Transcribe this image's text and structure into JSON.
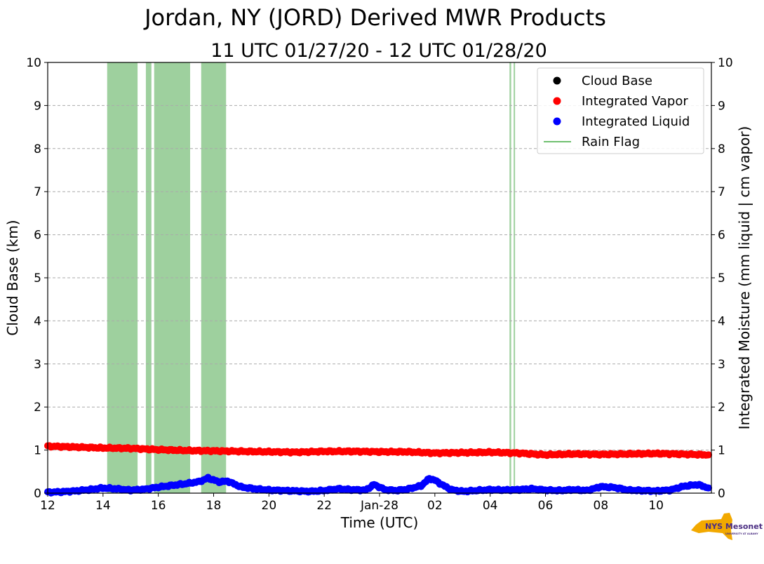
{
  "chart_data": {
    "type": "scatter",
    "title": "Jordan, NY (JORD) Derived MWR Products",
    "subtitle": "11 UTC 01/27/20 - 12 UTC 01/28/20",
    "xlabel": "Time (UTC)",
    "ylabel_left": "Cloud Base (km)",
    "ylabel_right": "Integrated Moisture (mm liquid | cm vapor)",
    "xlim_hours": [
      0,
      24
    ],
    "ylim": [
      0,
      10
    ],
    "grid": "horizontal dashed",
    "x_ticks": [
      {
        "hour": 0,
        "label": "12"
      },
      {
        "hour": 2,
        "label": "14"
      },
      {
        "hour": 4,
        "label": "16"
      },
      {
        "hour": 6,
        "label": "18"
      },
      {
        "hour": 8,
        "label": "20"
      },
      {
        "hour": 10,
        "label": "22"
      },
      {
        "hour": 12,
        "label": "Jan-28"
      },
      {
        "hour": 14,
        "label": "02"
      },
      {
        "hour": 16,
        "label": "04"
      },
      {
        "hour": 18,
        "label": "06"
      },
      {
        "hour": 20,
        "label": "08"
      },
      {
        "hour": 22,
        "label": "10"
      }
    ],
    "y_ticks": [
      "0",
      "1",
      "2",
      "3",
      "4",
      "5",
      "6",
      "7",
      "8",
      "9",
      "10"
    ],
    "legend": {
      "placement": "top-right",
      "entries": [
        {
          "label": "Cloud Base",
          "color": "#000000",
          "kind": "dot"
        },
        {
          "label": "Integrated Vapor",
          "color": "#ff0000",
          "kind": "dot"
        },
        {
          "label": "Integrated Liquid",
          "color": "#0000ff",
          "kind": "dot"
        },
        {
          "label": "Rain Flag",
          "color": "#6fbf6f",
          "kind": "line"
        }
      ]
    },
    "rain_flag": {
      "color": "#8dc88d",
      "periods_hours": [
        [
          2.15,
          3.25
        ],
        [
          3.55,
          3.75
        ],
        [
          3.85,
          5.15
        ],
        [
          5.55,
          6.45
        ],
        [
          16.7,
          16.76
        ],
        [
          16.85,
          16.9
        ]
      ]
    },
    "series": [
      {
        "name": "Integrated Vapor",
        "color": "#ff0000",
        "x_hours": [
          0,
          1,
          2,
          3,
          4,
          5,
          6,
          7,
          8,
          9,
          10,
          11,
          12,
          13,
          14,
          15,
          16,
          17,
          18,
          19,
          20,
          21,
          22,
          23.9
        ],
        "values": [
          1.09,
          1.07,
          1.05,
          1.04,
          1.01,
          0.99,
          0.98,
          0.97,
          0.96,
          0.95,
          0.97,
          0.97,
          0.96,
          0.96,
          0.93,
          0.94,
          0.95,
          0.93,
          0.89,
          0.91,
          0.9,
          0.91,
          0.92,
          0.89
        ]
      },
      {
        "name": "Integrated Liquid",
        "color": "#0000ff",
        "x_hours": [
          0,
          0.5,
          1,
          1.5,
          2,
          2.5,
          3,
          3.5,
          4,
          4.5,
          5,
          5.5,
          5.8,
          6.2,
          6.5,
          7,
          7.5,
          8,
          8.5,
          9,
          9.5,
          10,
          10.5,
          11,
          11.5,
          11.8,
          12.2,
          12.6,
          13,
          13.5,
          13.8,
          14,
          14.3,
          14.6,
          15,
          15.5,
          16,
          16.5,
          17,
          17.5,
          18,
          18.5,
          19,
          19.5,
          20,
          20.5,
          21,
          21.5,
          22,
          22.5,
          23,
          23.5,
          23.9
        ],
        "values": [
          0.02,
          0.03,
          0.05,
          0.08,
          0.12,
          0.1,
          0.07,
          0.09,
          0.14,
          0.18,
          0.22,
          0.27,
          0.35,
          0.26,
          0.28,
          0.14,
          0.1,
          0.07,
          0.06,
          0.05,
          0.04,
          0.06,
          0.1,
          0.08,
          0.07,
          0.2,
          0.08,
          0.06,
          0.09,
          0.17,
          0.34,
          0.3,
          0.18,
          0.08,
          0.04,
          0.06,
          0.08,
          0.07,
          0.08,
          0.1,
          0.07,
          0.06,
          0.08,
          0.06,
          0.15,
          0.13,
          0.07,
          0.06,
          0.05,
          0.07,
          0.16,
          0.2,
          0.12
        ]
      }
    ]
  },
  "logo": {
    "text": "NYS Mesonet",
    "subtext": "UNIVERSITY AT ALBANY",
    "color_state": "#f2a900",
    "color_text": "#4b2e83"
  }
}
